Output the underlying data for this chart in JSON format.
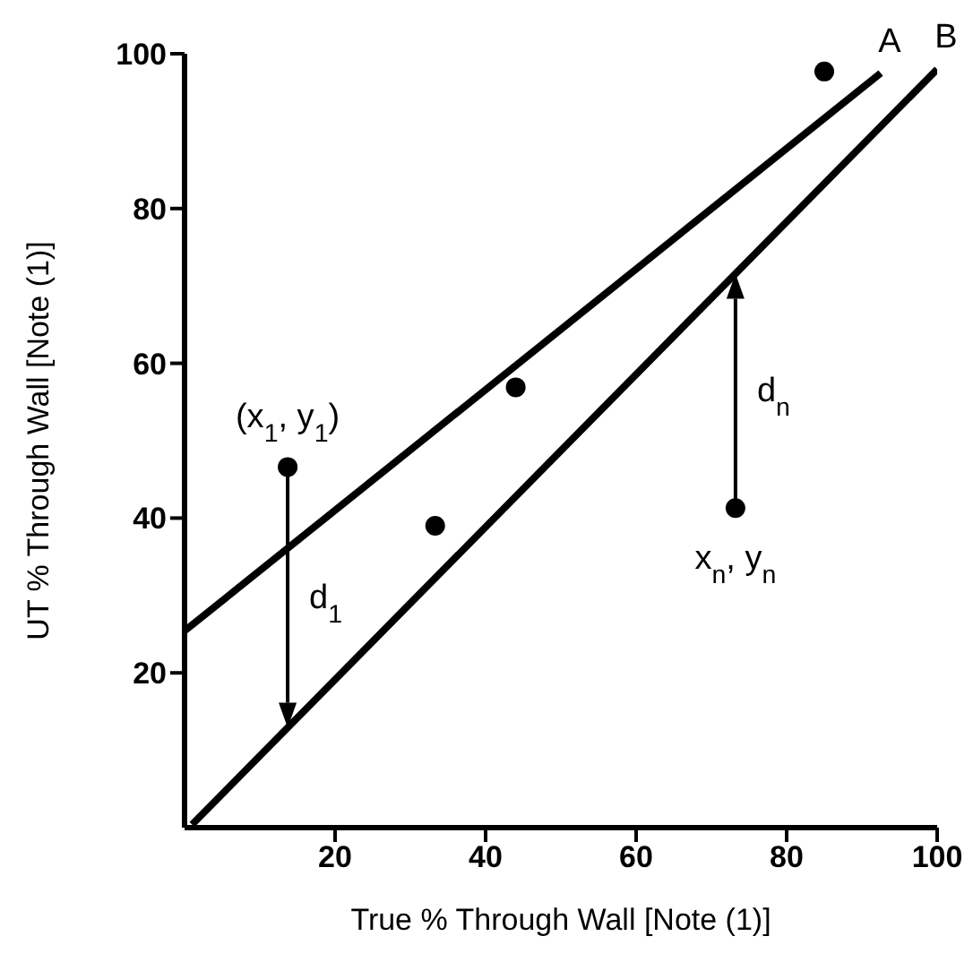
{
  "chart_data": {
    "type": "scatter",
    "xlabel": "True % Through Wall [Note (1)]",
    "ylabel": "UT % Through Wall [Note (1)]",
    "xlim": [
      0,
      100
    ],
    "ylim": [
      0,
      100
    ],
    "xticks": [
      20,
      40,
      60,
      80,
      100
    ],
    "yticks": [
      20,
      40,
      60,
      80,
      100
    ],
    "grid": false,
    "legend": false,
    "series": [
      {
        "color": "#000000",
        "marker": "circle",
        "x": [
          13.7,
          33.3,
          44.0,
          73.2,
          85.0
        ],
        "values": [
          46.6,
          39.0,
          56.9,
          41.3,
          97.7
        ]
      },
      {
        "type": "line",
        "color": "#000000",
        "line_style": "solid",
        "x": [
          0.1,
          92.5
        ],
        "values": [
          25.5,
          97.5
        ]
      },
      {
        "type": "line",
        "color": "#000000",
        "line_style": "solid",
        "x": [
          1,
          100
        ],
        "values": [
          0.4,
          98
        ]
      }
    ],
    "annotations": [
      {
        "text": "A",
        "x": 92.5,
        "y": 97.5
      },
      {
        "text": "B",
        "x": 100,
        "y": 98
      },
      {
        "text": "(x$_{1}$, y$_{1}$)",
        "x": 13.7,
        "y": 46.6
      },
      {
        "text": "d$_{1}$",
        "x": 13.7,
        "y": 12.9
      },
      {
        "text": "x$_{n}$, y$_{n}$",
        "x": 73.2,
        "y": 41.3
      },
      {
        "text": "d$_{n}$",
        "x": 73.2,
        "y": 71.6
      }
    ]
  }
}
